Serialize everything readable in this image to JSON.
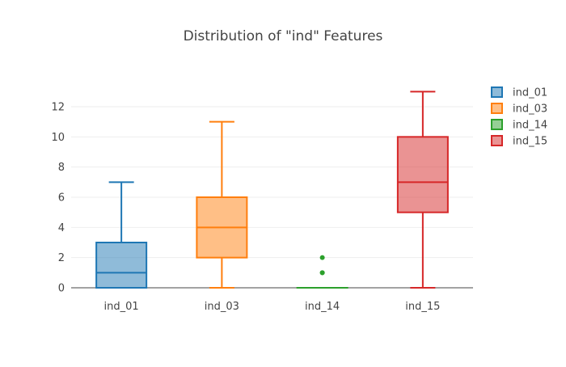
{
  "chart_data": {
    "type": "box",
    "title": "Distribution of \"ind\" Features",
    "xlabel": "",
    "ylabel": "",
    "ylim": [
      0,
      13
    ],
    "yticks": [
      0,
      2,
      4,
      6,
      8,
      10,
      12
    ],
    "grid": true,
    "legend_position": "top-right",
    "categories": [
      "ind_01",
      "ind_03",
      "ind_14",
      "ind_15"
    ],
    "series": [
      {
        "name": "ind_01",
        "color": "#1f77b4",
        "min": 0,
        "q1": 0,
        "median": 1,
        "q3": 3,
        "max": 7,
        "outliers": []
      },
      {
        "name": "ind_03",
        "color": "#ff7f0e",
        "min": 0,
        "q1": 2,
        "median": 4,
        "q3": 6,
        "max": 11,
        "outliers": []
      },
      {
        "name": "ind_14",
        "color": "#2ca02c",
        "min": 0,
        "q1": 0,
        "median": 0,
        "q3": 0,
        "max": 0,
        "outliers": [
          1,
          1,
          2
        ]
      },
      {
        "name": "ind_15",
        "color": "#d62728",
        "min": 0,
        "q1": 5,
        "median": 7,
        "q3": 10,
        "max": 13,
        "outliers": []
      }
    ]
  }
}
